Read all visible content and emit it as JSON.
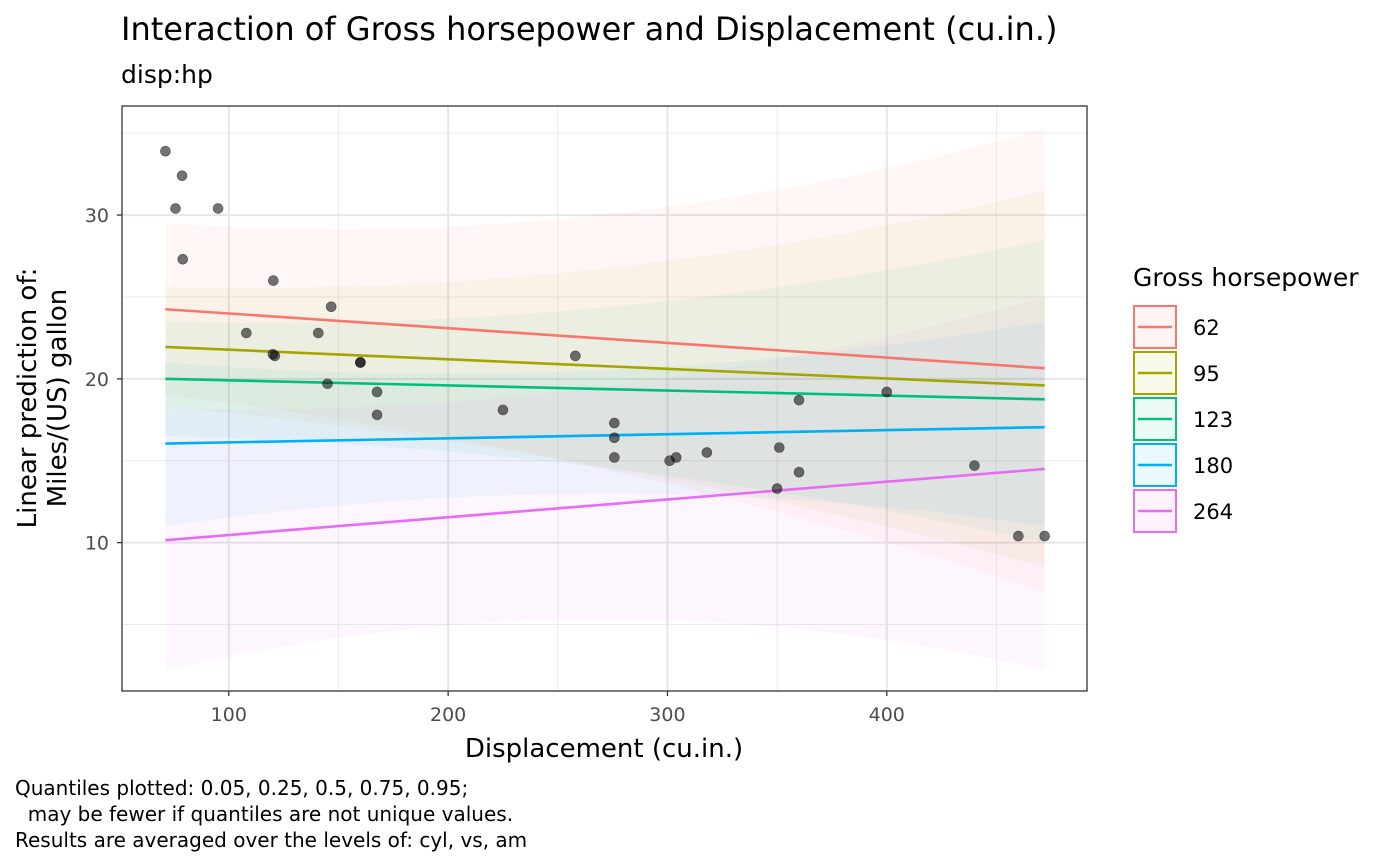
{
  "title": "Interaction of Gross horsepower and Displacement (cu.in.)",
  "subtitle": "disp:hp",
  "caption_lines": [
    "Quantiles plotted: 0.05, 0.25, 0.5, 0.75, 0.95;",
    "  may be fewer if quantiles are not unique values.",
    "Results are averaged over the levels of: cyl, vs, am"
  ],
  "chart_data": {
    "type": "line",
    "xlabel": "Displacement (cu.in.)",
    "ylabel_lines": [
      "Linear prediction of:",
      "Miles/(US) gallon"
    ],
    "xlim": [
      51.3,
      491.3
    ],
    "ylim": [
      0.94,
      36.66
    ],
    "x_ticks": [
      100,
      200,
      300,
      400
    ],
    "y_ticks": [
      10,
      20,
      30
    ],
    "grid": true,
    "legend": {
      "title": "Gross horsepower",
      "position": "right"
    },
    "series": [
      {
        "name": "62",
        "color": "#F8766D",
        "x": [
          71.1,
          472
        ],
        "y": [
          24.25,
          20.65
        ],
        "lower": [
          19.0,
          7.0
        ],
        "upper": [
          29.5,
          35.3
        ]
      },
      {
        "name": "95",
        "color": "#A3A500",
        "x": [
          71.1,
          472
        ],
        "y": [
          21.95,
          19.6
        ],
        "lower": [
          18.3,
          8.5
        ],
        "upper": [
          25.6,
          31.5
        ]
      },
      {
        "name": "123",
        "color": "#00BF7D",
        "x": [
          71.1,
          472
        ],
        "y": [
          20.0,
          18.75
        ],
        "lower": [
          16.5,
          10.0
        ],
        "upper": [
          23.5,
          28.5
        ]
      },
      {
        "name": "180",
        "color": "#00B0F6",
        "x": [
          71.1,
          472
        ],
        "y": [
          16.05,
          17.05
        ],
        "lower": [
          11.0,
          11.0
        ],
        "upper": [
          21.0,
          23.5
        ]
      },
      {
        "name": "264",
        "color": "#E76BF3",
        "x": [
          71.1,
          472
        ],
        "y": [
          10.15,
          14.5
        ],
        "lower": [
          2.2,
          2.2
        ],
        "upper": [
          18.2,
          25.0
        ]
      }
    ],
    "points": [
      {
        "x": 71.1,
        "y": 33.9
      },
      {
        "x": 75.7,
        "y": 30.4
      },
      {
        "x": 78.7,
        "y": 32.4
      },
      {
        "x": 79.0,
        "y": 27.3
      },
      {
        "x": 95.1,
        "y": 30.4
      },
      {
        "x": 108.0,
        "y": 22.8
      },
      {
        "x": 120.1,
        "y": 21.5
      },
      {
        "x": 120.3,
        "y": 26.0
      },
      {
        "x": 121.0,
        "y": 21.4
      },
      {
        "x": 140.8,
        "y": 22.8
      },
      {
        "x": 145.0,
        "y": 19.7
      },
      {
        "x": 146.7,
        "y": 24.4
      },
      {
        "x": 160.0,
        "y": 21.0
      },
      {
        "x": 160.0,
        "y": 21.0
      },
      {
        "x": 167.6,
        "y": 19.2
      },
      {
        "x": 167.6,
        "y": 17.8
      },
      {
        "x": 225.0,
        "y": 18.1
      },
      {
        "x": 258.0,
        "y": 21.4
      },
      {
        "x": 275.8,
        "y": 16.4
      },
      {
        "x": 275.8,
        "y": 17.3
      },
      {
        "x": 275.8,
        "y": 15.2
      },
      {
        "x": 301.0,
        "y": 15.0
      },
      {
        "x": 304.0,
        "y": 15.2
      },
      {
        "x": 318.0,
        "y": 15.5
      },
      {
        "x": 350.0,
        "y": 13.3
      },
      {
        "x": 351.0,
        "y": 15.8
      },
      {
        "x": 360.0,
        "y": 18.7
      },
      {
        "x": 360.0,
        "y": 14.3
      },
      {
        "x": 400.0,
        "y": 19.2
      },
      {
        "x": 440.0,
        "y": 14.7
      },
      {
        "x": 460.0,
        "y": 10.4
      },
      {
        "x": 472.0,
        "y": 10.4
      }
    ]
  }
}
